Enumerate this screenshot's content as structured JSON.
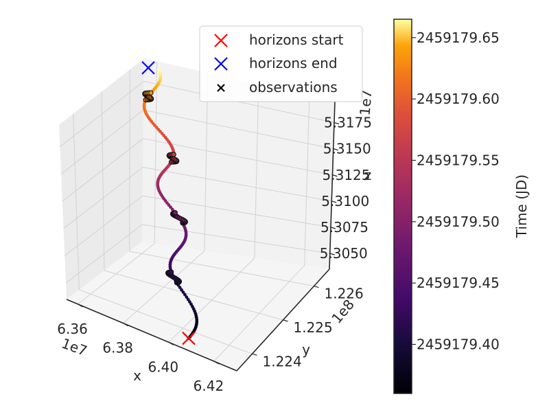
{
  "chart_data": {
    "type": "scatter",
    "projection": "3d",
    "axes": {
      "x": {
        "label": "x",
        "offset_text": "1e7",
        "ticks": [
          "6.36",
          "6.38",
          "6.40",
          "6.42"
        ],
        "tick_values": [
          6.36,
          6.38,
          6.4,
          6.42
        ],
        "range": [
          6.355,
          6.43
        ]
      },
      "y": {
        "label": "y",
        "offset_text": "1e8",
        "ticks": [
          "1.224",
          "1.225",
          "1.226"
        ],
        "tick_values": [
          1.224,
          1.225,
          1.226
        ],
        "range": [
          1.2235,
          1.2265
        ]
      },
      "z": {
        "label": "z",
        "offset_text": "1e7",
        "ticks": [
          "5.3050",
          "5.3075",
          "5.3100",
          "5.3125",
          "5.3150",
          "5.3175"
        ],
        "tick_values": [
          5.305,
          5.3075,
          5.31,
          5.3125,
          5.315,
          5.3175
        ],
        "range": [
          5.3035,
          5.3195
        ]
      }
    },
    "grid": true,
    "legend": {
      "placement": "top-right",
      "entries": [
        {
          "label": "horizons start",
          "marker": "x",
          "color": "#ff0000"
        },
        {
          "label": "horizons end",
          "marker": "x",
          "color": "#0000ff"
        },
        {
          "label": "observations",
          "marker": "x",
          "color": "#000000"
        }
      ]
    },
    "colorbar": {
      "label": "Time (JD)",
      "colormap": "inferno",
      "range": [
        2459179.36,
        2459179.665
      ],
      "ticks": [
        "2459179.40",
        "2459179.45",
        "2459179.50",
        "2459179.55",
        "2459179.60",
        "2459179.65"
      ],
      "tick_values": [
        2459179.4,
        2459179.45,
        2459179.5,
        2459179.55,
        2459179.6,
        2459179.65
      ]
    },
    "trajectory": {
      "time_start": 2459179.36,
      "time_end": 2459179.665,
      "start": {
        "x": 6.405,
        "y": 1.2238,
        "z": 5.3035
      },
      "end": {
        "x": 6.36,
        "y": 1.2262,
        "z": 5.3195
      },
      "observation_clusters": [
        {
          "time_start": 2459179.415,
          "time_end": 2459179.425
        },
        {
          "time_start": 2459179.485,
          "time_end": 2459179.495
        },
        {
          "time_start": 2459179.555,
          "time_end": 2459179.565
        },
        {
          "time_start": 2459179.625,
          "time_end": 2459179.635
        }
      ]
    }
  }
}
